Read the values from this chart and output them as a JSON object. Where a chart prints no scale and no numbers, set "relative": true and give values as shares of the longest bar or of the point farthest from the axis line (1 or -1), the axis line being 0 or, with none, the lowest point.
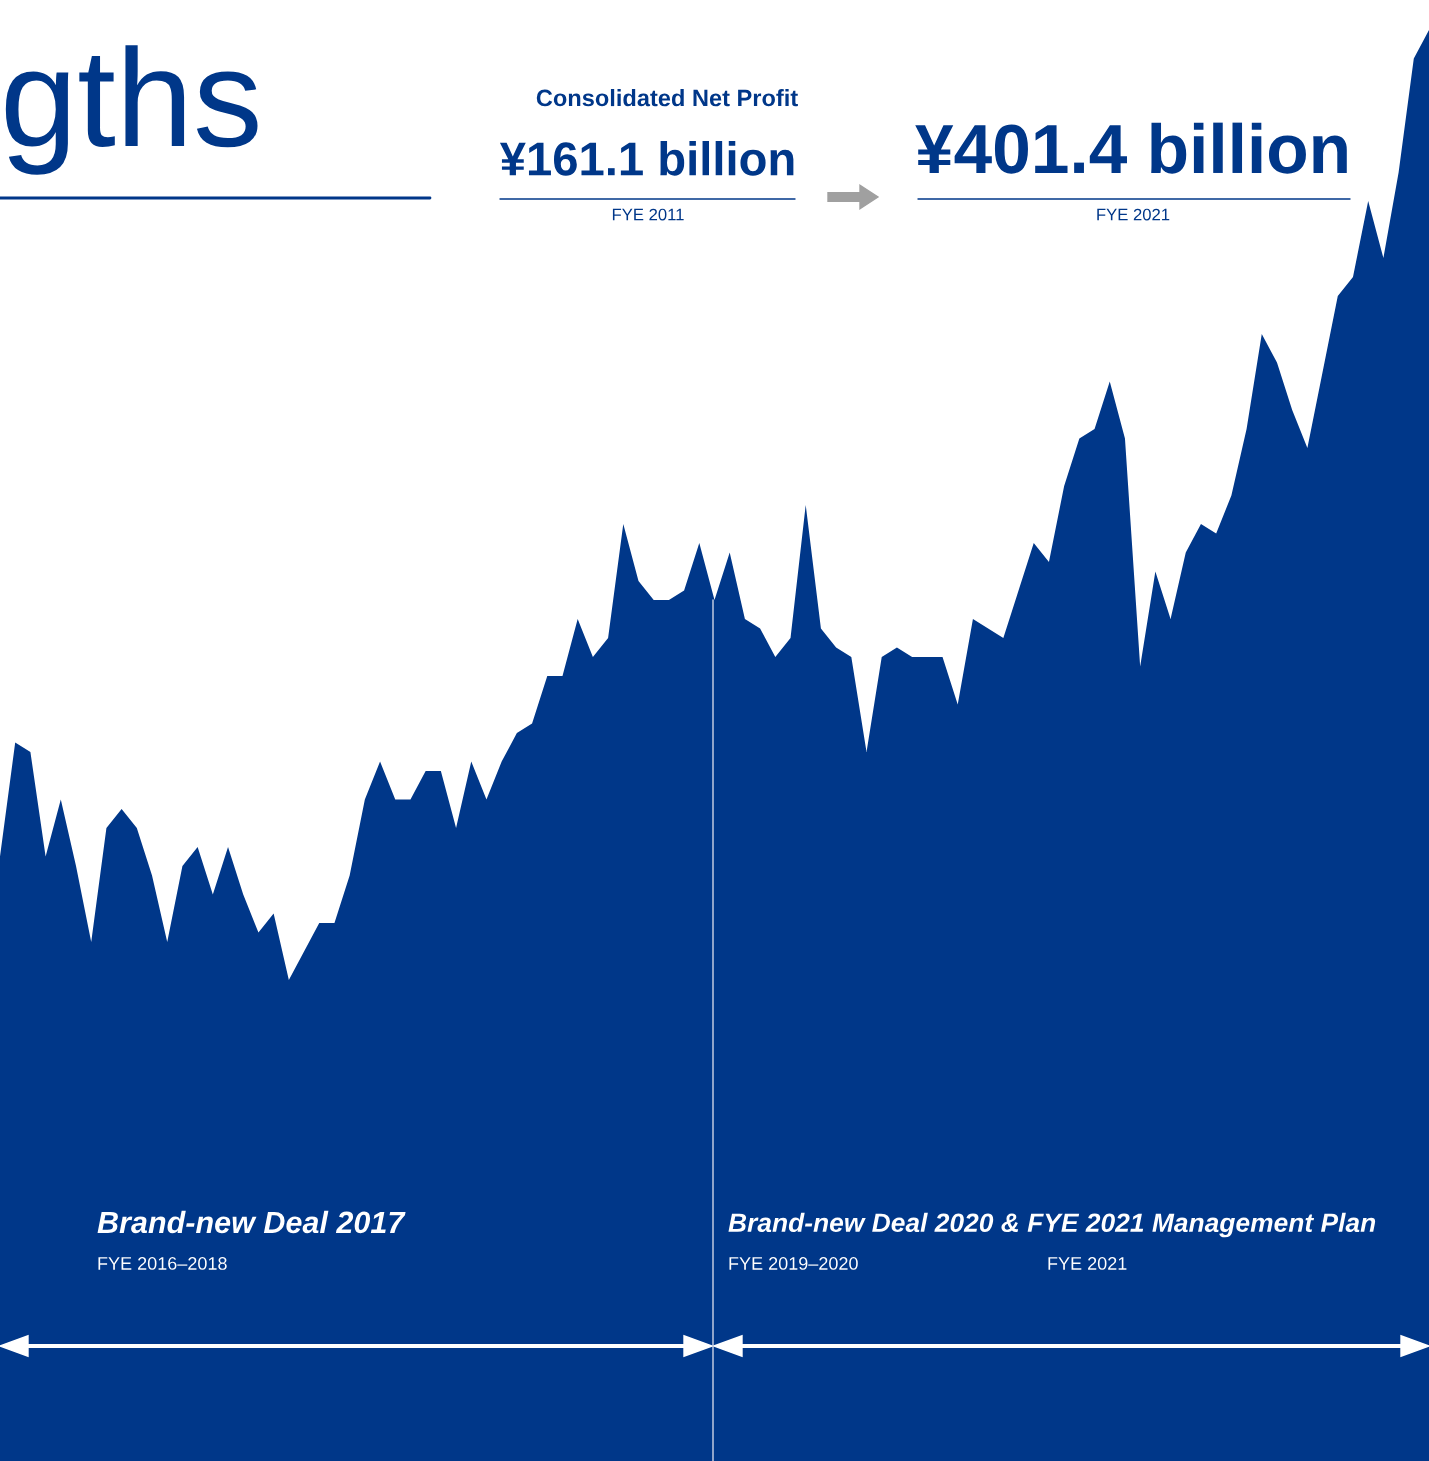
{
  "chart_data": {
    "type": "area",
    "title": "gths",
    "relative": true,
    "color": "#003789",
    "categories": [
      null,
      null,
      null,
      null,
      null,
      null,
      null,
      null,
      null,
      null,
      null,
      null,
      null,
      null,
      null,
      null,
      null,
      null,
      null,
      null,
      null,
      null,
      null,
      null,
      null,
      null,
      null,
      null,
      null,
      null,
      null,
      null,
      null,
      null,
      null,
      null,
      null,
      null,
      null,
      null,
      null,
      null,
      null,
      null,
      null,
      null,
      null,
      null,
      null,
      null,
      null,
      null,
      null,
      null,
      null,
      null,
      null,
      null,
      null,
      null,
      null,
      null,
      null,
      null,
      null,
      null,
      null,
      null,
      null,
      null,
      null,
      null,
      null,
      null,
      null,
      null,
      null,
      null,
      null,
      null,
      null,
      null,
      null,
      null,
      null,
      null,
      null,
      null,
      null,
      null,
      null,
      null,
      null,
      null,
      null
    ],
    "values": [
      0.13,
      0.25,
      0.24,
      0.13,
      0.19,
      0.12,
      0.04,
      0.16,
      0.18,
      0.16,
      0.11,
      0.04,
      0.12,
      0.14,
      0.09,
      0.14,
      0.09,
      0.05,
      0.07,
      0,
      0.03,
      0.06,
      0.06,
      0.11,
      0.19,
      0.23,
      0.19,
      0.19,
      0.22,
      0.22,
      0.16,
      0.23,
      0.19,
      0.23,
      0.26,
      0.27,
      0.32,
      0.32,
      0.38,
      0.34,
      0.36,
      0.48,
      0.42,
      0.4,
      0.4,
      0.41,
      0.46,
      0.4,
      0.45,
      0.38,
      0.37,
      0.34,
      0.36,
      0.5,
      0.37,
      0.35,
      0.34,
      0.24,
      0.34,
      0.35,
      0.34,
      0.34,
      0.34,
      0.29,
      0.38,
      0.37,
      0.36,
      0.41,
      0.46,
      0.44,
      0.52,
      0.57,
      0.58,
      0.63,
      0.57,
      0.33,
      0.43,
      0.38,
      0.45,
      0.48,
      0.47,
      0.51,
      0.58,
      0.68,
      0.65,
      0.6,
      0.56,
      0.64,
      0.72,
      0.74,
      0.82,
      0.76,
      0.85,
      0.97,
      1
    ],
    "annotations": [
      "Consolidated Net Profit",
      "¥161.1 billion",
      "FYE 2011",
      "¥401.4 billion",
      "FYE 2021",
      "Brand-new Deal 2017",
      "FYE 2016–2018",
      "Brand-new Deal 2020 & FYE 2021 Management Plan",
      "FYE 2019–2020",
      "FYE 2021"
    ]
  }
}
